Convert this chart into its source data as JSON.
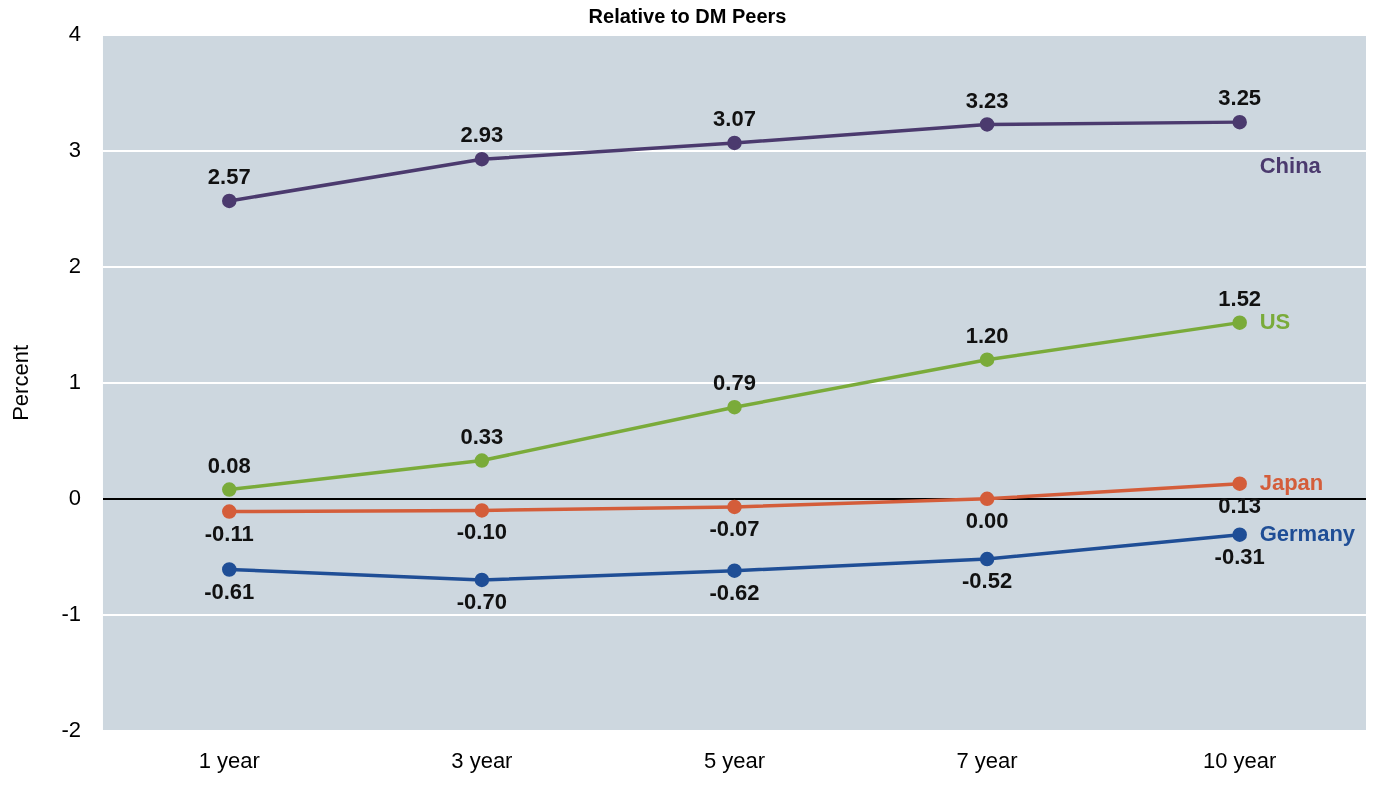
{
  "chart_data": {
    "type": "line",
    "title": "Relative to DM Peers",
    "ylabel": "Percent",
    "categories": [
      "1 year",
      "3 year",
      "5 year",
      "7 year",
      "10 year"
    ],
    "series": [
      {
        "name": "China",
        "color": "#4b3a6e",
        "values": [
          2.57,
          2.93,
          3.07,
          3.23,
          3.25
        ],
        "value_labels": [
          "2.57",
          "2.93",
          "3.07",
          "3.23",
          "3.25"
        ]
      },
      {
        "name": "US",
        "color": "#7aab3a",
        "values": [
          0.08,
          0.33,
          0.79,
          1.2,
          1.52
        ],
        "value_labels": [
          "0.08",
          "0.33",
          "0.79",
          "1.20",
          "1.52"
        ]
      },
      {
        "name": "Japan",
        "color": "#d45d3a",
        "values": [
          -0.11,
          -0.1,
          -0.07,
          0.0,
          0.13
        ],
        "value_labels": [
          "-0.11",
          "-0.10",
          "-0.07",
          "0.00",
          "0.13"
        ]
      },
      {
        "name": "Germany",
        "color": "#1f4e96",
        "values": [
          -0.61,
          -0.7,
          -0.62,
          -0.52,
          -0.31
        ],
        "value_labels": [
          "-0.61",
          "-0.70",
          "-0.62",
          "-0.52",
          "-0.31"
        ]
      }
    ],
    "ylim": [
      -2,
      4
    ],
    "yticks": [
      -2,
      -1,
      0,
      1,
      2,
      3,
      4
    ],
    "grid": "y",
    "legend": false,
    "marker": "circle",
    "line_style": "solid"
  }
}
